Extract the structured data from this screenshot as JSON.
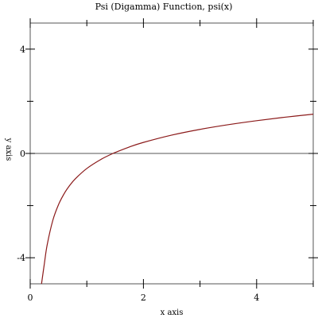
{
  "chart_data": {
    "type": "line",
    "title": "Psi (Digamma) Function, psi(x)",
    "xlabel": "x axis",
    "ylabel": "y axis",
    "xlim": [
      0,
      5
    ],
    "ylim": [
      -5,
      5
    ],
    "x_ticks_major": [
      0,
      2,
      4
    ],
    "x_ticks_minor": [
      1,
      3,
      5
    ],
    "y_ticks_major": [
      -4,
      0,
      4
    ],
    "y_ticks_minor": [
      -2,
      2
    ],
    "x_tick_labels": [
      "0",
      "2",
      "4"
    ],
    "y_tick_labels": [
      "-4",
      "0",
      "4"
    ],
    "zero_lines": true,
    "grid": false,
    "series": [
      {
        "color": "#8b1a1a",
        "x": [
          0.2,
          0.25,
          0.3,
          0.4,
          0.5,
          0.6,
          0.7,
          0.8,
          1.0,
          1.25,
          1.4616,
          1.5,
          1.75,
          2.0,
          2.5,
          3.0,
          3.5,
          4.0,
          4.5,
          5.0
        ],
        "y": [
          -5.289,
          -4.227,
          -3.502,
          -2.561,
          -1.964,
          -1.541,
          -1.22,
          -0.965,
          -0.577,
          -0.228,
          0.0,
          0.036,
          0.247,
          0.423,
          0.703,
          0.923,
          1.103,
          1.256,
          1.389,
          1.506
        ]
      }
    ]
  }
}
